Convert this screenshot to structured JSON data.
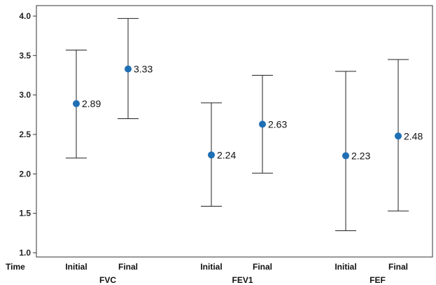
{
  "chart_data": {
    "type": "scatter",
    "subtype": "error-bar",
    "x_axis_title": "Time",
    "ylim": [
      1.0,
      4.0
    ],
    "y_ticks": [
      1.0,
      1.5,
      2.0,
      2.5,
      3.0,
      3.5,
      4.0
    ],
    "y_tick_labels": [
      "1.0",
      "1.5",
      "2.0",
      "2.5",
      "3.0",
      "3.5",
      "4.0"
    ],
    "grid": false,
    "marker_color": "#1f6fb4",
    "groups": [
      {
        "name": "FVC",
        "points": [
          {
            "category": "Initial",
            "value": 2.89,
            "label": "2.89",
            "lower": 2.2,
            "upper": 3.57
          },
          {
            "category": "Final",
            "value": 3.33,
            "label": "3.33",
            "lower": 2.7,
            "upper": 3.97
          }
        ]
      },
      {
        "name": "FEV1",
        "points": [
          {
            "category": "Initial",
            "value": 2.24,
            "label": "2.24",
            "lower": 1.59,
            "upper": 2.9
          },
          {
            "category": "Final",
            "value": 2.63,
            "label": "2.63",
            "lower": 2.01,
            "upper": 3.25
          }
        ]
      },
      {
        "name": "FEF",
        "points": [
          {
            "category": "Initial",
            "value": 2.23,
            "label": "2.23",
            "lower": 1.28,
            "upper": 3.3
          },
          {
            "category": "Final",
            "value": 2.48,
            "label": "2.48",
            "lower": 1.53,
            "upper": 3.45
          }
        ]
      }
    ]
  }
}
